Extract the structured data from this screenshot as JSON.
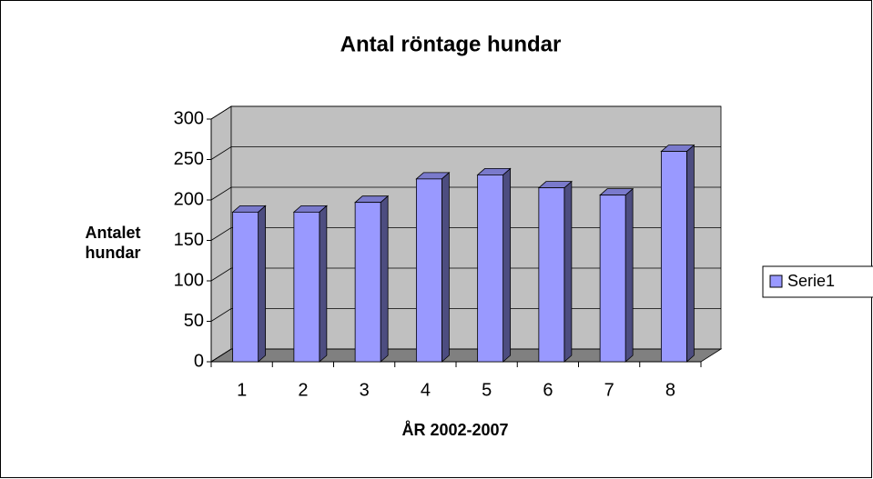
{
  "chart_data": {
    "type": "bar3d",
    "title": "Antal röntage hundar",
    "xlabel": "ÅR 2002-2007",
    "ylabel": "Antalet hundar",
    "categories": [
      "1",
      "2",
      "3",
      "4",
      "5",
      "6",
      "7",
      "8"
    ],
    "series": [
      {
        "name": "Serie1",
        "color": "#9999ff",
        "values": [
          185,
          185,
          197,
          226,
          231,
          215,
          206,
          260
        ]
      }
    ],
    "ylim": [
      0,
      300
    ],
    "yticks": [
      0,
      50,
      100,
      150,
      200,
      250,
      300
    ],
    "grid": true,
    "legend": "right"
  }
}
